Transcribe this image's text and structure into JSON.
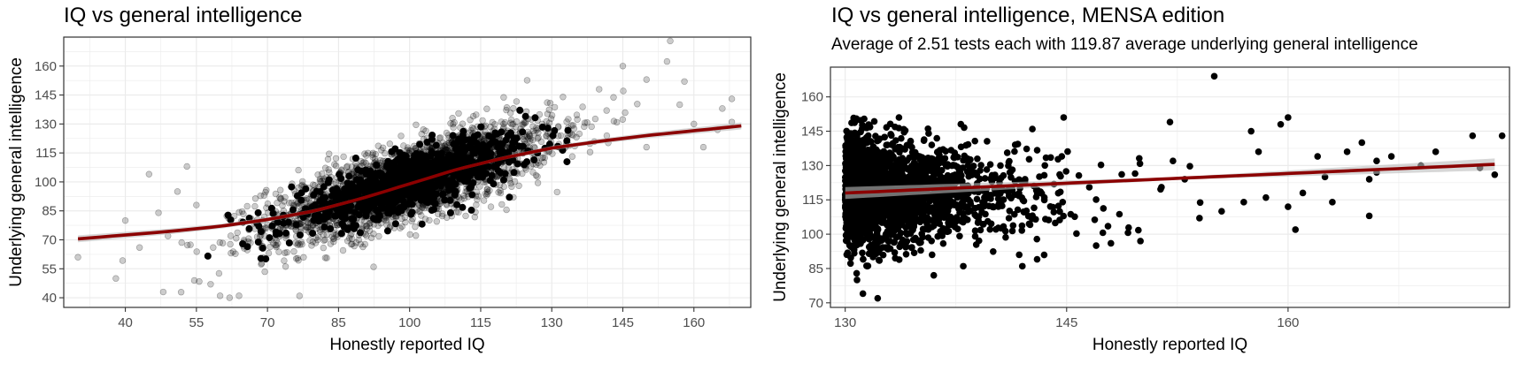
{
  "chart_data": [
    {
      "type": "scatter",
      "title": "IQ vs general intelligence",
      "subtitle": "",
      "xlabel": "Honestly reported IQ",
      "ylabel": "Underlying general intelligence",
      "xlim": [
        27,
        172
      ],
      "ylim": [
        35,
        175
      ],
      "x_ticks": [
        40,
        55,
        70,
        85,
        100,
        115,
        130,
        145,
        160
      ],
      "y_ticks": [
        40,
        55,
        70,
        85,
        100,
        115,
        130,
        145,
        160
      ],
      "grid": true,
      "point_color": "#000000",
      "point_opacity": 0.2,
      "cloud": {
        "description_free": true,
        "center_x": 100,
        "center_y": 100,
        "sd_x": 15,
        "sd_y": 15,
        "correlation": 0.75,
        "approx_points_drawn": 2600
      },
      "outliers": [
        {
          "x": 30,
          "y": 61
        },
        {
          "x": 38,
          "y": 50
        },
        {
          "x": 40,
          "y": 80
        },
        {
          "x": 43,
          "y": 66
        },
        {
          "x": 45,
          "y": 104
        },
        {
          "x": 47,
          "y": 84
        },
        {
          "x": 48,
          "y": 43
        },
        {
          "x": 49,
          "y": 72
        },
        {
          "x": 51,
          "y": 95
        },
        {
          "x": 53,
          "y": 108
        },
        {
          "x": 55,
          "y": 88
        },
        {
          "x": 58,
          "y": 47
        },
        {
          "x": 62,
          "y": 40
        },
        {
          "x": 60,
          "y": 41
        },
        {
          "x": 64,
          "y": 41
        },
        {
          "x": 140,
          "y": 148
        },
        {
          "x": 145,
          "y": 160
        },
        {
          "x": 150,
          "y": 153
        },
        {
          "x": 155,
          "y": 173
        },
        {
          "x": 157,
          "y": 140
        },
        {
          "x": 160,
          "y": 130
        },
        {
          "x": 162,
          "y": 118
        },
        {
          "x": 165,
          "y": 127
        },
        {
          "x": 166,
          "y": 138
        },
        {
          "x": 168,
          "y": 143
        },
        {
          "x": 168,
          "y": 131
        },
        {
          "x": 150,
          "y": 118
        },
        {
          "x": 158,
          "y": 152
        }
      ],
      "smooth_line": {
        "color": "#8b0000",
        "ci_color": "#bdbdbd",
        "x": [
          30,
          40,
          50,
          60,
          70,
          80,
          90,
          100,
          110,
          120,
          130,
          140,
          150,
          160,
          170
        ],
        "y": [
          70.5,
          72.5,
          74.5,
          77,
          80.5,
          85,
          91.5,
          99,
          106.5,
          112.5,
          117.5,
          121,
          124,
          126.5,
          129
        ]
      }
    },
    {
      "type": "scatter",
      "title": "IQ vs general intelligence, MENSA edition",
      "subtitle": "Average of 2.51 tests each with 119.87 average underlying general intelligence",
      "xlabel": "Honestly reported IQ",
      "ylabel": "Underlying general intelligence",
      "xlim": [
        129,
        175
      ],
      "ylim": [
        68,
        173
      ],
      "x_ticks": [
        130,
        145,
        160
      ],
      "y_ticks": [
        70,
        85,
        100,
        115,
        130,
        145,
        160
      ],
      "grid": true,
      "point_color": "#000000",
      "point_opacity": 1,
      "cloud": {
        "x_min": 130,
        "center_y": 118,
        "sd_y": 12,
        "approx_points_drawn": 2200
      },
      "outliers": [
        {
          "x": 130.8,
          "y": 80
        },
        {
          "x": 131.2,
          "y": 74
        },
        {
          "x": 131.5,
          "y": 86
        },
        {
          "x": 132.2,
          "y": 72
        },
        {
          "x": 136,
          "y": 82
        },
        {
          "x": 138,
          "y": 86
        },
        {
          "x": 142,
          "y": 86
        },
        {
          "x": 143,
          "y": 89
        },
        {
          "x": 144.8,
          "y": 151
        },
        {
          "x": 147,
          "y": 95
        },
        {
          "x": 148,
          "y": 96
        },
        {
          "x": 150,
          "y": 97
        },
        {
          "x": 152,
          "y": 149
        },
        {
          "x": 153,
          "y": 124
        },
        {
          "x": 154,
          "y": 107
        },
        {
          "x": 155,
          "y": 169
        },
        {
          "x": 155.5,
          "y": 110
        },
        {
          "x": 157,
          "y": 114
        },
        {
          "x": 157.5,
          "y": 145
        },
        {
          "x": 158,
          "y": 136
        },
        {
          "x": 158.5,
          "y": 116
        },
        {
          "x": 159.5,
          "y": 148
        },
        {
          "x": 160,
          "y": 112
        },
        {
          "x": 160,
          "y": 151
        },
        {
          "x": 160.5,
          "y": 102
        },
        {
          "x": 161,
          "y": 118
        },
        {
          "x": 162,
          "y": 134
        },
        {
          "x": 162.5,
          "y": 125
        },
        {
          "x": 163,
          "y": 114
        },
        {
          "x": 164,
          "y": 136
        },
        {
          "x": 165,
          "y": 140
        },
        {
          "x": 165.5,
          "y": 108
        },
        {
          "x": 165.5,
          "y": 124
        },
        {
          "x": 166,
          "y": 127
        },
        {
          "x": 166,
          "y": 132
        },
        {
          "x": 167,
          "y": 134
        },
        {
          "x": 170,
          "y": 136
        },
        {
          "x": 172.5,
          "y": 143
        },
        {
          "x": 174,
          "y": 126
        },
        {
          "x": 174.5,
          "y": 143
        },
        {
          "x": 173,
          "y": 129
        },
        {
          "x": 169,
          "y": 130
        }
      ],
      "smooth_line": {
        "color": "#8b0000",
        "ci_color": "#bdbdbd",
        "x": [
          130,
          174
        ],
        "y": [
          118,
          130.5
        ]
      }
    }
  ]
}
